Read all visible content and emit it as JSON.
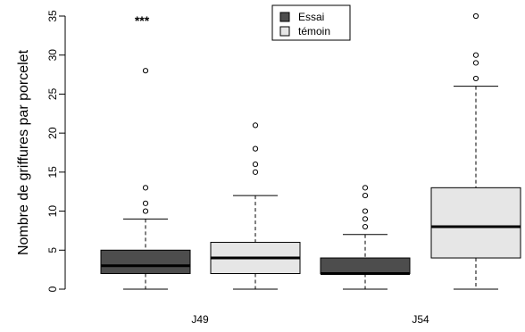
{
  "chart_data": {
    "type": "boxplot",
    "ylabel": "Nombre de griffures par porcelet",
    "xlabel": "",
    "ylim": [
      0,
      35
    ],
    "yticks": [
      0,
      5,
      10,
      15,
      20,
      25,
      30,
      35
    ],
    "categories": [
      "J49",
      "J54"
    ],
    "legend": {
      "placement": "top-center",
      "entries": [
        {
          "label": "Essai",
          "color": "#4d4d4d"
        },
        {
          "label": "témoin",
          "color": "#e6e6e6"
        }
      ]
    },
    "boxes": [
      {
        "category": "J49",
        "series": "Essai",
        "color": "#4d4d4d",
        "min": 0,
        "q1": 2,
        "median": 3,
        "q3": 5,
        "max": 9,
        "outliers": [
          10,
          11,
          13,
          28
        ]
      },
      {
        "category": "J49",
        "series": "témoin",
        "color": "#e6e6e6",
        "min": 0,
        "q1": 2,
        "median": 4,
        "q3": 6,
        "max": 12,
        "outliers": [
          15,
          16,
          18,
          21
        ]
      },
      {
        "category": "J54",
        "series": "Essai",
        "color": "#4d4d4d",
        "min": 0,
        "q1": 2,
        "median": 2,
        "q3": 4,
        "max": 7,
        "outliers": [
          8,
          9,
          10,
          12,
          13
        ]
      },
      {
        "category": "J54",
        "series": "témoin",
        "color": "#e6e6e6",
        "min": 0,
        "q1": 4,
        "median": 8,
        "q3": 13,
        "max": 26,
        "outliers": [
          27,
          29,
          30,
          35
        ]
      }
    ],
    "annotations": [
      {
        "text": "***",
        "category": "J49",
        "y": 35
      }
    ]
  }
}
